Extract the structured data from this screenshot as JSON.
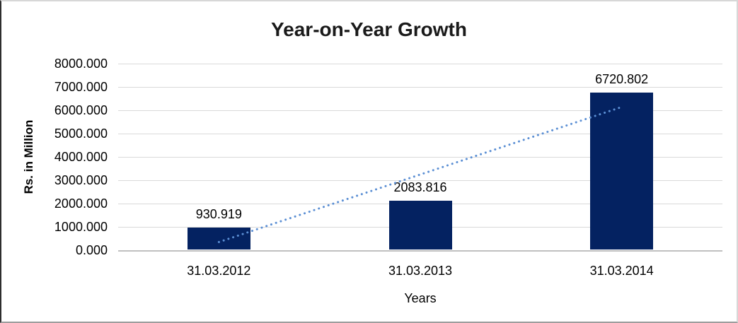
{
  "chart_data": {
    "type": "bar",
    "title": "Year-on-Year Growth",
    "xlabel": "Years",
    "ylabel": "Rs. in Million",
    "categories": [
      "31.03.2012",
      "31.03.2013",
      "31.03.2014"
    ],
    "values": [
      930.919,
      2083.816,
      6720.802
    ],
    "data_labels": [
      "930.919",
      "2083.816",
      "6720.802"
    ],
    "y_ticks": [
      "8000.000",
      "7000.000",
      "6000.000",
      "5000.000",
      "4000.000",
      "3000.000",
      "2000.000",
      "1000.000",
      "0.000"
    ],
    "ylim": [
      0,
      8000
    ],
    "y_step": 1000,
    "grid": "horizontal-only",
    "legend": "none",
    "trendline": {
      "type": "linear",
      "style": "dotted"
    },
    "colors": {
      "bar": "#042261",
      "trendline": "#5B8FD4",
      "gridline": "#D9D9D9",
      "axis_line": "#C0C0C0",
      "text": "#000000"
    }
  }
}
